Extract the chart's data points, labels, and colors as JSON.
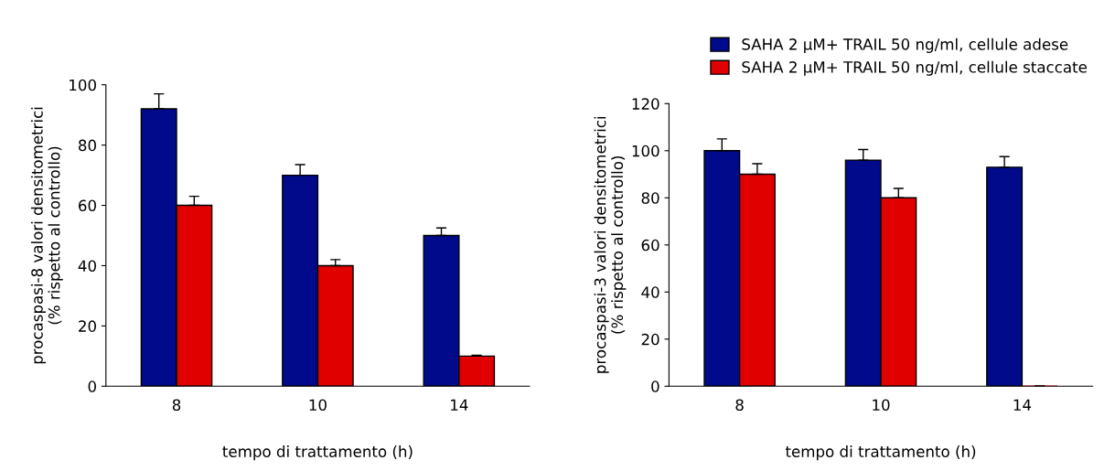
{
  "chart_data": [
    {
      "type": "bar",
      "ylabel": "procaspasi-8 valori densitometrici\n(% rispetto al controllo)",
      "xlabel": "tempo di trattamento (h)",
      "categories": [
        "8",
        "10",
        "14"
      ],
      "ylim": [
        0,
        100
      ],
      "yticks": [
        0,
        20,
        40,
        60,
        80,
        100
      ],
      "grid": false,
      "legend": false,
      "series": [
        {
          "color": "#000a8a",
          "values": [
            92,
            70,
            50
          ],
          "errors": [
            5,
            3.5,
            2.5
          ]
        },
        {
          "color": "#e00000",
          "values": [
            60,
            40,
            10
          ],
          "errors": [
            3,
            2,
            0.3
          ]
        }
      ]
    },
    {
      "type": "bar",
      "ylabel": "procaspasi-3 valori densitometrici\n(% rispetto al controllo)",
      "xlabel": "tempo di trattamento (h)",
      "categories": [
        "8",
        "10",
        "14"
      ],
      "ylim": [
        0,
        120
      ],
      "yticks": [
        0,
        20,
        40,
        60,
        80,
        100,
        120
      ],
      "grid": false,
      "legend": "top right",
      "series": [
        {
          "name": "SAHA 2 µM+ TRAIL 50 ng/ml, cellule adese",
          "color": "#000a8a",
          "values": [
            100,
            96,
            93
          ],
          "errors": [
            5,
            4.5,
            4.5
          ]
        },
        {
          "name": "SAHA 2 µM+ TRAIL 50 ng/ml, cellule staccate",
          "color": "#e00000",
          "values": [
            90,
            80,
            0
          ],
          "errors": [
            4.5,
            4,
            null
          ]
        }
      ]
    }
  ]
}
